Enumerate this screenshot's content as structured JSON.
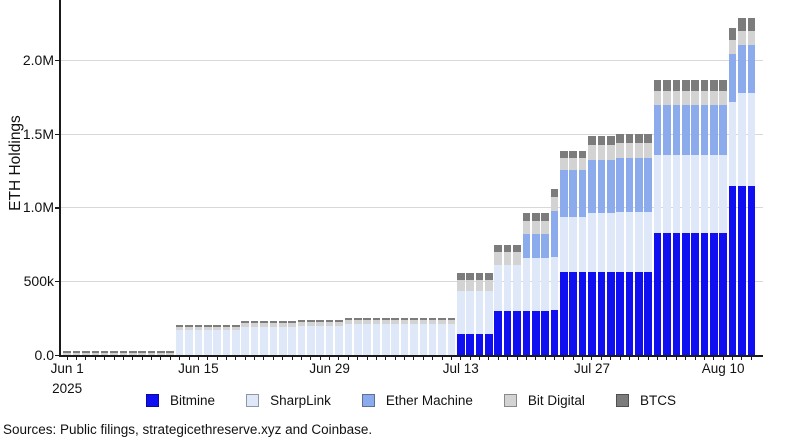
{
  "figure": {
    "sources_note": "Sources: Public filings, strategicethreserve.xyz and Coinbase.",
    "background": "#ffffff",
    "axis_color": "#1a1a1a",
    "grid_color": "#d8d8d8"
  },
  "chart_data": {
    "type": "bar",
    "stacked": true,
    "title": "",
    "xlabel": "",
    "ylabel": "ETH Holdings",
    "unit_note": "values_k are thousands of ETH per day",
    "grid": true,
    "legend_position": "bottom",
    "n_bars": 74,
    "x_first_date": "Jun 1, 2025",
    "x_last_date": "Aug 13, 2025",
    "ylim_k": [
      0,
      2410
    ],
    "y_ticks": [
      {
        "value_k": 0,
        "label": "0.0"
      },
      {
        "value_k": 500,
        "label": "500k"
      },
      {
        "value_k": 1000,
        "label": "1.0M"
      },
      {
        "value_k": 1500,
        "label": "1.5M"
      },
      {
        "value_k": 2000,
        "label": "2.0M"
      }
    ],
    "x_ticks": [
      {
        "index": 0,
        "label": "Jun 1",
        "sublabel": "2025"
      },
      {
        "index": 14,
        "label": "Jun 15"
      },
      {
        "index": 28,
        "label": "Jun 29"
      },
      {
        "index": 42,
        "label": "Jul 13"
      },
      {
        "index": 56,
        "label": "Jul 27"
      },
      {
        "index": 70,
        "label": "Aug 10"
      }
    ],
    "series": [
      {
        "name": "Bitmine",
        "color": "#0f0ff2",
        "values_k": [
          0,
          0,
          0,
          0,
          0,
          0,
          0,
          0,
          0,
          0,
          0,
          0,
          0,
          0,
          0,
          0,
          0,
          0,
          0,
          0,
          0,
          0,
          0,
          0,
          0,
          0,
          0,
          0,
          0,
          0,
          0,
          0,
          0,
          0,
          0,
          0,
          0,
          0,
          0,
          0,
          0,
          0,
          148,
          148,
          148,
          148,
          301,
          301,
          301,
          301,
          301,
          301,
          305,
          563,
          563,
          563,
          563,
          563,
          563,
          563,
          563,
          563,
          563,
          827,
          827,
          827,
          827,
          827,
          827,
          827,
          827,
          1150,
          1150,
          1150
        ]
      },
      {
        "name": "SharpLink",
        "color": "#dee8f9",
        "values_k": [
          0,
          0,
          0,
          0,
          0,
          0,
          0,
          0,
          0,
          0,
          0,
          0,
          172,
          172,
          172,
          172,
          172,
          172,
          172,
          196,
          196,
          196,
          196,
          196,
          196,
          202,
          202,
          202,
          202,
          202,
          213,
          213,
          213,
          213,
          213,
          213,
          213,
          216,
          216,
          216,
          216,
          216,
          287,
          287,
          287,
          287,
          312,
          312,
          312,
          360,
          360,
          360,
          365,
          373,
          373,
          373,
          400,
          400,
          400,
          410,
          410,
          410,
          410,
          530,
          530,
          530,
          530,
          530,
          530,
          530,
          530,
          565,
          625,
          625
        ]
      },
      {
        "name": "Ether Machine",
        "color": "#8cabec",
        "values_k": [
          0,
          0,
          0,
          0,
          0,
          0,
          0,
          0,
          0,
          0,
          0,
          0,
          0,
          0,
          0,
          0,
          0,
          0,
          0,
          0,
          0,
          0,
          0,
          0,
          0,
          0,
          0,
          0,
          0,
          0,
          0,
          0,
          0,
          0,
          0,
          0,
          0,
          0,
          0,
          0,
          0,
          0,
          0,
          0,
          0,
          0,
          0,
          0,
          0,
          163,
          163,
          163,
          310,
          318,
          318,
          318,
          360,
          360,
          360,
          365,
          365,
          365,
          365,
          340,
          340,
          340,
          340,
          340,
          340,
          340,
          340,
          330,
          325,
          325
        ]
      },
      {
        "name": "Bit Digital",
        "color": "#d3d3d3",
        "values_k": [
          20,
          20,
          20,
          20,
          20,
          20,
          20,
          20,
          20,
          20,
          20,
          20,
          22,
          22,
          22,
          22,
          22,
          22,
          22,
          23,
          23,
          23,
          23,
          23,
          23,
          24,
          24,
          24,
          24,
          24,
          25,
          25,
          25,
          25,
          25,
          25,
          25,
          26,
          26,
          26,
          26,
          26,
          76,
          76,
          76,
          76,
          85,
          85,
          85,
          90,
          90,
          90,
          95,
          85,
          85,
          85,
          100,
          100,
          100,
          101,
          101,
          101,
          101,
          95,
          95,
          95,
          95,
          95,
          95,
          95,
          95,
          95,
          100,
          100
        ]
      },
      {
        "name": "BTCS",
        "color": "#7c7c7c",
        "values_k": [
          8,
          8,
          8,
          8,
          8,
          8,
          8,
          8,
          8,
          8,
          8,
          8,
          10,
          10,
          10,
          10,
          10,
          10,
          10,
          12,
          12,
          12,
          12,
          12,
          12,
          13,
          13,
          13,
          13,
          13,
          14,
          14,
          14,
          14,
          14,
          14,
          14,
          15,
          15,
          15,
          15,
          15,
          45,
          45,
          45,
          45,
          48,
          48,
          48,
          52,
          52,
          52,
          55,
          47,
          47,
          47,
          62,
          62,
          62,
          63,
          63,
          63,
          63,
          73,
          73,
          73,
          73,
          73,
          73,
          73,
          73,
          80,
          85,
          85
        ]
      }
    ]
  }
}
